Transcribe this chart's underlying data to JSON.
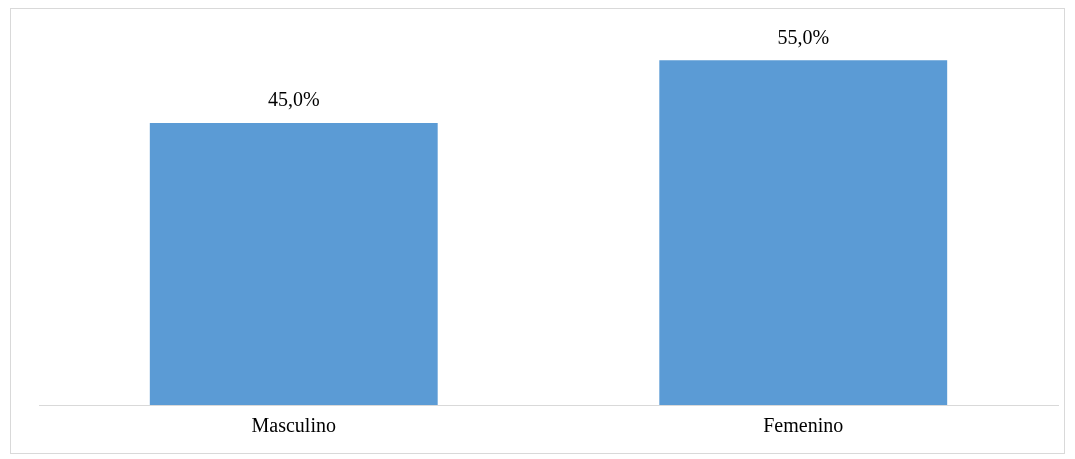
{
  "chart_data": {
    "type": "bar",
    "categories": [
      "Masculino",
      "Femenino"
    ],
    "values": [
      45.0,
      55.0
    ],
    "color": "#5b9bd5",
    "value_labels": [
      "45,0%",
      "55,0%"
    ],
    "grid": false,
    "legend": false
  }
}
